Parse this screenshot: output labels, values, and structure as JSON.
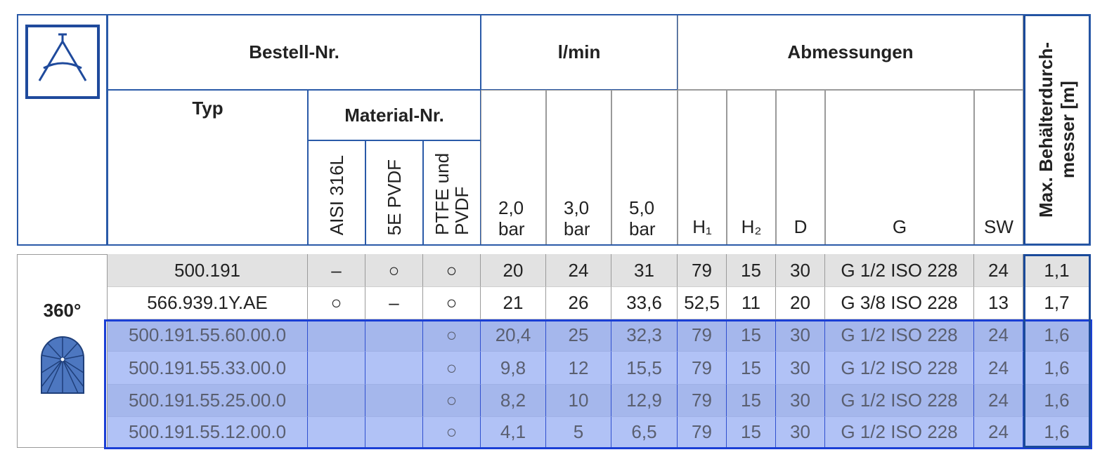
{
  "header": {
    "bestell_nr": "Bestell-Nr.",
    "l_min": "l/min",
    "abmessungen": "Abmessungen",
    "max_diameter": [
      "Max. Behälterdurch-",
      "messer [m]"
    ],
    "typ": "Typ",
    "material_nr": "Material-Nr.",
    "materials": [
      "AISI 316L",
      "5E PVDF",
      "PTFE und PVDF"
    ],
    "flow": [
      {
        "pressure": "2,0",
        "unit": "bar"
      },
      {
        "pressure": "3,0",
        "unit": "bar"
      },
      {
        "pressure": "5,0",
        "unit": "bar"
      }
    ],
    "dimensions": [
      "H₁",
      "H₂",
      "D",
      "G",
      "SW"
    ]
  },
  "side_label": "360°",
  "table": {
    "rows": [
      [
        "500.191",
        "–",
        "○",
        "○",
        "20",
        "24",
        "31",
        "79",
        "15",
        "30",
        "G 1/2 ISO 228",
        "24",
        "1,1"
      ],
      [
        "566.939.1Y.AE",
        "○",
        "–",
        "○",
        "21",
        "26",
        "33,6",
        "52,5",
        "11",
        "20",
        "G 3/8 ISO 228",
        "13",
        "1,7"
      ],
      [
        "500.191.55.60.00.0",
        null,
        null,
        "○",
        "20,4",
        "25",
        "32,3",
        "79",
        "15",
        "30",
        "G 1/2 ISO 228",
        "24",
        "1,6"
      ],
      [
        "500.191.55.33.00.0",
        null,
        null,
        "○",
        "9,8",
        "12",
        "15,5",
        "79",
        "15",
        "30",
        "G 1/2 ISO 228",
        "24",
        "1,6"
      ],
      [
        "500.191.55.25.00.0",
        null,
        null,
        "○",
        "8,2",
        "10",
        "12,9",
        "79",
        "15",
        "30",
        "G 1/2 ISO 228",
        "24",
        "1,6"
      ],
      [
        "500.191.55.12.00.0",
        null,
        null,
        "○",
        "4,1",
        "5",
        "6,5",
        "79",
        "15",
        "30",
        "G 1/2 ISO 228",
        "24",
        "1,6"
      ]
    ]
  }
}
